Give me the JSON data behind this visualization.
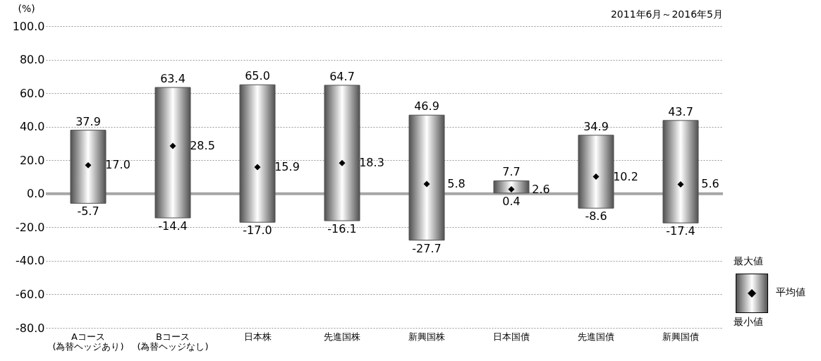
{
  "chart_data": {
    "type": "bar",
    "title": "2011年6月～2016年5月",
    "ylabel": "(%)",
    "categories": [
      "Aコース\n(為替ヘッジあり)",
      "Bコース\n(為替ヘッジなし)",
      "日本株",
      "先進国株",
      "新興国株",
      "日本国債",
      "先進国債",
      "新興国債"
    ],
    "series": [
      {
        "type": "bar",
        "color": "#505050",
        "base": [
          -5.7,
          -14.4,
          -17.0,
          -16.1,
          -27.7,
          0.4,
          -8.6,
          -17.4
        ],
        "values": [
          43.6,
          77.8,
          82.0,
          80.8,
          74.6,
          7.3,
          43.5,
          61.1
        ]
      },
      {
        "type": "scatter",
        "color": "#000000",
        "marker": "diamond",
        "values": [
          17.0,
          28.5,
          15.9,
          18.3,
          5.8,
          2.6,
          10.2,
          5.6
        ],
        "value_labels": [
          "17.0",
          "28.5",
          "15.9",
          "18.3",
          "5.8",
          "2.6",
          "10.2",
          "5.6"
        ]
      }
    ],
    "ylim": [
      -80,
      100
    ],
    "yticks": [
      {
        "value": -80,
        "label": "-80.0"
      },
      {
        "value": -60,
        "label": "-60.0"
      },
      {
        "value": -40,
        "label": "-40.0"
      },
      {
        "value": -20,
        "label": "-20.0"
      },
      {
        "value": 0,
        "label": "0.0"
      },
      {
        "value": 20,
        "label": "20.0"
      },
      {
        "value": 40,
        "label": "40.0"
      },
      {
        "value": 60,
        "label": "60.0"
      },
      {
        "value": 80,
        "label": "80.0"
      },
      {
        "value": 100,
        "label": "100.0"
      }
    ],
    "grid": "y",
    "ref_lines": [
      {
        "axis": "y",
        "value": 0,
        "color": "#a6a6a6"
      }
    ],
    "annotations": [
      {
        "text": "37.9",
        "x": "Aコース\n(為替ヘッジあり)",
        "y": 37.9
      },
      {
        "text": "-5.7",
        "x": "Aコース\n(為替ヘッジあり)",
        "y": -5.7
      },
      {
        "text": "63.4",
        "x": "Bコース\n(為替ヘッジなし)",
        "y": 63.4
      },
      {
        "text": "-14.4",
        "x": "Bコース\n(為替ヘッジなし)",
        "y": -14.4
      },
      {
        "text": "65.0",
        "x": "日本株",
        "y": 65.0
      },
      {
        "text": "-17.0",
        "x": "日本株",
        "y": -17.0
      },
      {
        "text": "64.7",
        "x": "先進国株",
        "y": 64.7
      },
      {
        "text": "-16.1",
        "x": "先進国株",
        "y": -16.1
      },
      {
        "text": "46.9",
        "x": "新興国株",
        "y": 46.9
      },
      {
        "text": "-27.7",
        "x": "新興国株",
        "y": -27.7
      },
      {
        "text": "7.7",
        "x": "日本国債",
        "y": 7.7
      },
      {
        "text": "0.4",
        "x": "日本国債",
        "y": 0.4
      },
      {
        "text": "34.9",
        "x": "先進国債",
        "y": 34.9
      },
      {
        "text": "-8.6",
        "x": "先進国債",
        "y": -8.6
      },
      {
        "text": "43.7",
        "x": "新興国債",
        "y": 43.7
      },
      {
        "text": "-17.4",
        "x": "新興国債",
        "y": -17.4
      },
      "最大値",
      "平均値",
      "最小値"
    ]
  }
}
